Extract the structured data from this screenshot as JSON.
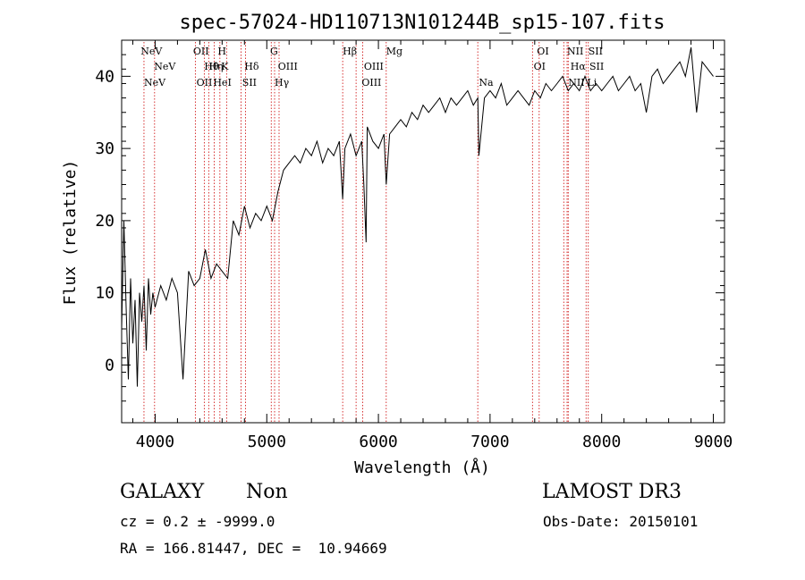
{
  "chart_data": {
    "type": "line",
    "title": "spec-57024-HD110713N101244B_sp15-107.fits",
    "xlabel": "Wavelength (Å)",
    "ylabel": "Flux (relative)",
    "xlim": [
      3700,
      9100
    ],
    "ylim": [
      -8,
      45
    ],
    "xticks": [
      4000,
      5000,
      6000,
      7000,
      8000,
      9000
    ],
    "yticks": [
      0,
      10,
      20,
      30,
      40
    ],
    "grid": false,
    "series": [
      {
        "x": [
          3700,
          3720,
          3740,
          3760,
          3780,
          3800,
          3820,
          3840,
          3860,
          3880,
          3900,
          3920,
          3940,
          3960,
          3980,
          4000,
          4050,
          4100,
          4150,
          4200,
          4250,
          4300,
          4350,
          4400,
          4450,
          4500,
          4550,
          4600,
          4650,
          4700,
          4750,
          4800,
          4850,
          4900,
          4950,
          5000,
          5050,
          5100,
          5150,
          5200,
          5250,
          5300,
          5350,
          5400,
          5450,
          5500,
          5550,
          5600,
          5650,
          5680,
          5700,
          5750,
          5800,
          5850,
          5870,
          5890,
          5900,
          5950,
          6000,
          6050,
          6070,
          6100,
          6150,
          6200,
          6250,
          6300,
          6350,
          6400,
          6450,
          6500,
          6550,
          6600,
          6650,
          6700,
          6750,
          6800,
          6850,
          6890,
          6900,
          6950,
          7000,
          7050,
          7100,
          7150,
          7200,
          7250,
          7300,
          7350,
          7400,
          7450,
          7500,
          7550,
          7600,
          7650,
          7700,
          7750,
          7800,
          7850,
          7900,
          7950,
          8000,
          8050,
          8100,
          8150,
          8200,
          8250,
          8300,
          8350,
          8400,
          8450,
          8500,
          8550,
          8600,
          8650,
          8700,
          8750,
          8800,
          8850,
          8900,
          8950,
          9000
        ],
        "y": [
          5,
          20,
          8,
          -2,
          12,
          3,
          9,
          -3,
          10,
          6,
          11,
          2,
          12,
          7,
          10,
          8,
          11,
          9,
          12,
          10,
          -2,
          13,
          11,
          12,
          16,
          12,
          14,
          13,
          12,
          20,
          18,
          22,
          19,
          21,
          20,
          22,
          20,
          24,
          27,
          28,
          29,
          28,
          30,
          29,
          31,
          28,
          30,
          29,
          31,
          23,
          30,
          32,
          29,
          31,
          25,
          17,
          33,
          31,
          30,
          32,
          25,
          32,
          33,
          34,
          33,
          35,
          34,
          36,
          35,
          36,
          37,
          35,
          37,
          36,
          37,
          38,
          36,
          37,
          29,
          37,
          38,
          37,
          39,
          36,
          37,
          38,
          37,
          36,
          38,
          37,
          39,
          38,
          39,
          40,
          38,
          39,
          38,
          40,
          38,
          39,
          38,
          39,
          40,
          38,
          39,
          40,
          38,
          39,
          35,
          40,
          41,
          39,
          40,
          41,
          42,
          40,
          44,
          35,
          42,
          41,
          40
        ]
      }
    ],
    "lines_top": [
      {
        "label": "NeV",
        "wl": 3870
      },
      {
        "label": "OII",
        "wl": 4340
      },
      {
        "label": "H",
        "wl": 4560
      },
      {
        "label": "G",
        "wl": 5030
      },
      {
        "label": "Hβ",
        "wl": 5680
      },
      {
        "label": "Mg",
        "wl": 6070
      },
      {
        "label": "OI",
        "wl": 7420
      },
      {
        "label": "NII",
        "wl": 7690
      },
      {
        "label": "SII",
        "wl": 7880
      }
    ],
    "lines_mid": [
      {
        "label": "NeV",
        "wl": 3990
      },
      {
        "label": "Hη",
        "wl": 4480
      },
      {
        "label": "Hθ",
        "wl": 4440
      },
      {
        "label": "K",
        "wl": 4590
      },
      {
        "label": "Hδ",
        "wl": 4800
      },
      {
        "label": "OIII",
        "wl": 5100
      },
      {
        "label": "OIII",
        "wl": 5870
      },
      {
        "label": "OI",
        "wl": 7390
      },
      {
        "label": "Hα",
        "wl": 7720
      },
      {
        "label": "SII",
        "wl": 7890
      }
    ],
    "lines_low": [
      {
        "label": "NeV",
        "wl": 3900
      },
      {
        "label": "OII",
        "wl": 4370
      },
      {
        "label": "HeI",
        "wl": 4520
      },
      {
        "label": "SII",
        "wl": 4780
      },
      {
        "label": "Hγ",
        "wl": 5070
      },
      {
        "label": "OIII",
        "wl": 5850
      },
      {
        "label": "Na",
        "wl": 6900
      },
      {
        "label": "NII",
        "wl": 7700
      },
      {
        "label": "Li",
        "wl": 7870
      }
    ],
    "line_marks": [
      3900,
      3995,
      4360,
      4440,
      4480,
      4530,
      4580,
      4640,
      4770,
      4810,
      5040,
      5070,
      5110,
      5680,
      5800,
      5860,
      6070,
      6890,
      7380,
      7440,
      7660,
      7690,
      7700,
      7860,
      7880
    ]
  },
  "footer": {
    "class_label": "GALAXY",
    "subclass": "Non",
    "survey": "LAMOST DR3",
    "cz": "cz = 0.2 ± -9999.0",
    "obs_date": "Obs-Date: 20150101",
    "coords": "RA = 166.81447, DEC =  10.94669"
  }
}
